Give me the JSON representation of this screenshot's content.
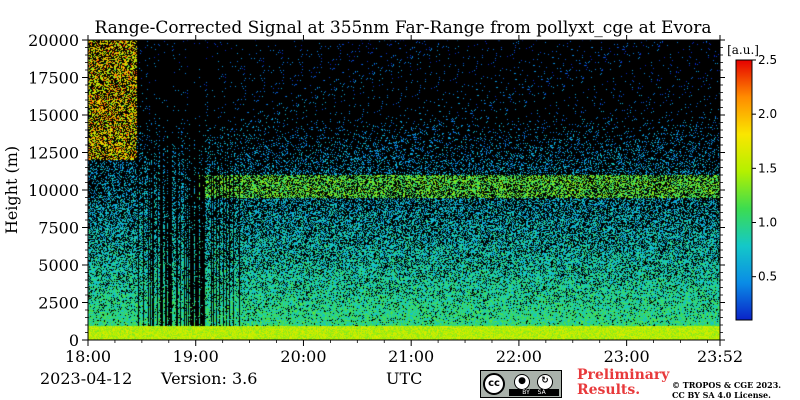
{
  "chart_data": {
    "type": "heatmap",
    "title": "Range-Corrected Signal at 355nm Far-Range from pollyxt_cge at Evora",
    "xlabel": "",
    "ylabel": "Height (m)",
    "x_ticks": [
      "18:00",
      "19:00",
      "20:00",
      "21:00",
      "22:00",
      "23:00",
      "23:52"
    ],
    "x_range": [
      "18:00",
      "23:52"
    ],
    "y_ticks": [
      0,
      2500,
      5000,
      7500,
      10000,
      12500,
      15000,
      17500,
      20000
    ],
    "y_range": [
      0,
      20000
    ],
    "colorbar": {
      "unit": "[a.u.]",
      "ticks": [
        0.5,
        1.0,
        1.5,
        2.0,
        2.5
      ],
      "range": [
        0.1,
        2.5
      ],
      "tick_labels": [
        "0.5",
        "1.0",
        "1.5",
        "2.0",
        "2.5"
      ],
      "colormap": [
        "#0a22c8",
        "#0a8ce6",
        "#14c8c8",
        "#3cdc50",
        "#b4f000",
        "#fae600",
        "#ff8c00",
        "#e60000"
      ]
    },
    "features": [
      {
        "name": "boundary layer",
        "height_range_m": [
          0,
          1000
        ],
        "typical_signal": 1.5
      },
      {
        "name": "cirrus layer",
        "height_range_m": [
          9500,
          11000
        ],
        "time_range": [
          "19:00",
          "23:52"
        ],
        "typical_signal": 1.2
      },
      {
        "name": "low-signal gaps",
        "time_range": [
          "18:27",
          "19:25"
        ]
      }
    ],
    "grid": false,
    "legend": "colorbar-right"
  },
  "footer": {
    "date": "2023-04-12",
    "version": "Version: 3.6",
    "utc": "UTC",
    "preliminary_line1": "Preliminary",
    "preliminary_line2": "Results.",
    "copyright_line1": "© TROPOS & CGE 2023.",
    "copyright_line2": "CC BY SA 4.0 License."
  },
  "license_badge": {
    "cc": "cc",
    "by": "BY",
    "sa": "SA"
  }
}
